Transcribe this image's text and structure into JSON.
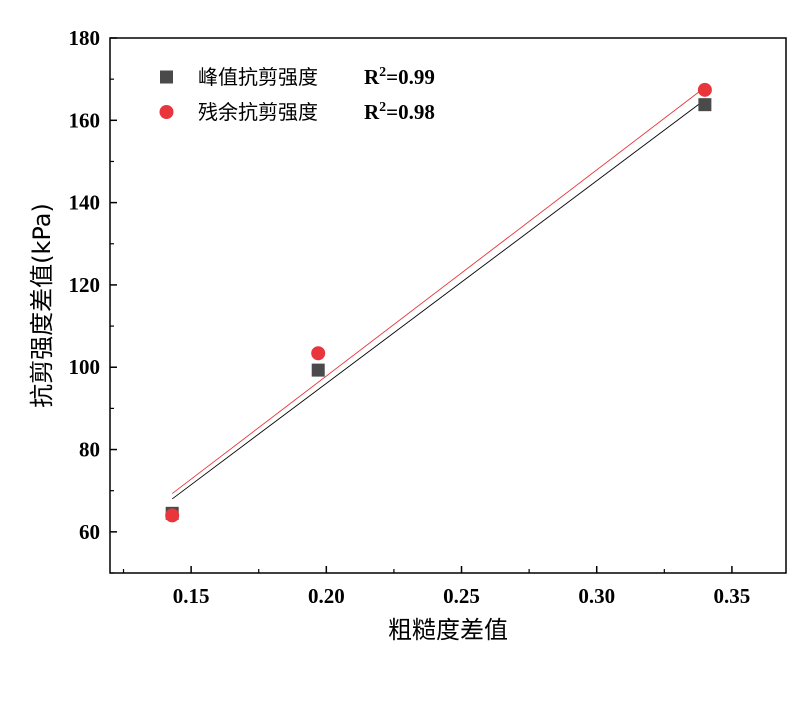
{
  "chart_data": {
    "type": "scatter",
    "xlabel": "粗糙度差值",
    "ylabel": "抗剪强度差值(kPa)",
    "xlim": [
      0.12,
      0.37
    ],
    "ylim": [
      50,
      180
    ],
    "xticks": [
      0.15,
      0.2,
      0.25,
      0.3,
      0.35
    ],
    "xtick_labels": [
      "0.15",
      "0.20",
      "0.25",
      "0.30",
      "0.35"
    ],
    "yticks": [
      60,
      80,
      100,
      120,
      140,
      160,
      180
    ],
    "ytick_labels": [
      "60",
      "80",
      "100",
      "120",
      "140",
      "160",
      "180"
    ],
    "legend_position": "top-left",
    "series": [
      {
        "name": "峰值抗剪强度",
        "r2_label": "R",
        "r2_sup": "2",
        "r2_value": "=0.99",
        "marker": "square",
        "color": "#4a4a4a",
        "fit_color": "#000000",
        "x": [
          0.143,
          0.197,
          0.34
        ],
        "y": [
          64.5,
          99.3,
          163.8
        ],
        "fit_y": [
          68.0,
          165.0
        ]
      },
      {
        "name": "残余抗剪强度",
        "r2_label": "R",
        "r2_sup": "2",
        "r2_value": "=0.98",
        "marker": "circle",
        "color": "#e8363c",
        "fit_color": "#e8363c",
        "x": [
          0.143,
          0.197,
          0.34
        ],
        "y": [
          64.0,
          103.4,
          167.4
        ],
        "fit_y": [
          69.3,
          168.0
        ]
      }
    ]
  }
}
